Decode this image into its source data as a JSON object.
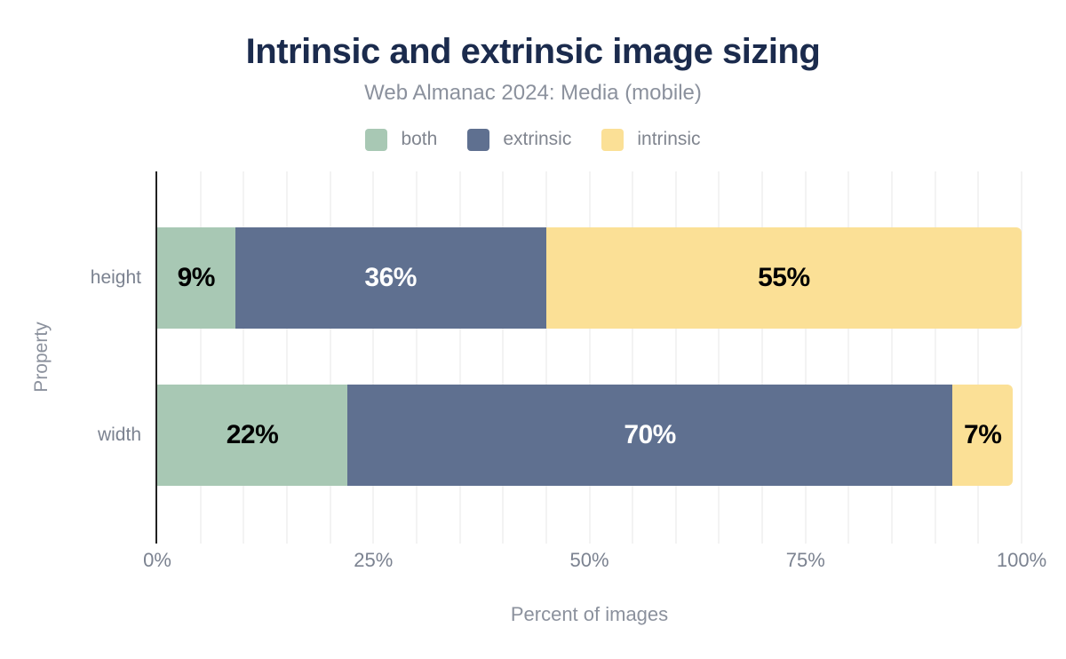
{
  "chart_data": {
    "type": "bar",
    "orientation": "horizontal-stacked",
    "title": "Intrinsic and extrinsic image sizing",
    "subtitle": "Web Almanac 2024: Media (mobile)",
    "xlabel": "Percent of images",
    "ylabel": "Property",
    "categories": [
      "height",
      "width"
    ],
    "series": [
      {
        "name": "both",
        "values": [
          9,
          22
        ],
        "color": "#a8c8b4",
        "label_color": "#000000"
      },
      {
        "name": "extrinsic",
        "values": [
          36,
          70
        ],
        "color": "#5f7090",
        "label_color": "#ffffff"
      },
      {
        "name": "intrinsic",
        "values": [
          55,
          7
        ],
        "color": "#fbe096",
        "label_color": "#000000"
      }
    ],
    "value_label_suffix": "%",
    "x_ticks": [
      {
        "label": "0%",
        "value": 0
      },
      {
        "label": "25%",
        "value": 25
      },
      {
        "label": "50%",
        "value": 50
      },
      {
        "label": "75%",
        "value": 75
      },
      {
        "label": "100%",
        "value": 100
      }
    ],
    "xlim": [
      0,
      100
    ],
    "grid": {
      "on": true,
      "interval_percent": 5,
      "color": "#f3f3f3"
    },
    "legend_position": "top-center",
    "colors": {
      "title": "#1b2b4d",
      "subtitle": "#8b919d",
      "tick_text": "#7b8290",
      "axis_line": "#212121",
      "background": "#ffffff"
    }
  }
}
